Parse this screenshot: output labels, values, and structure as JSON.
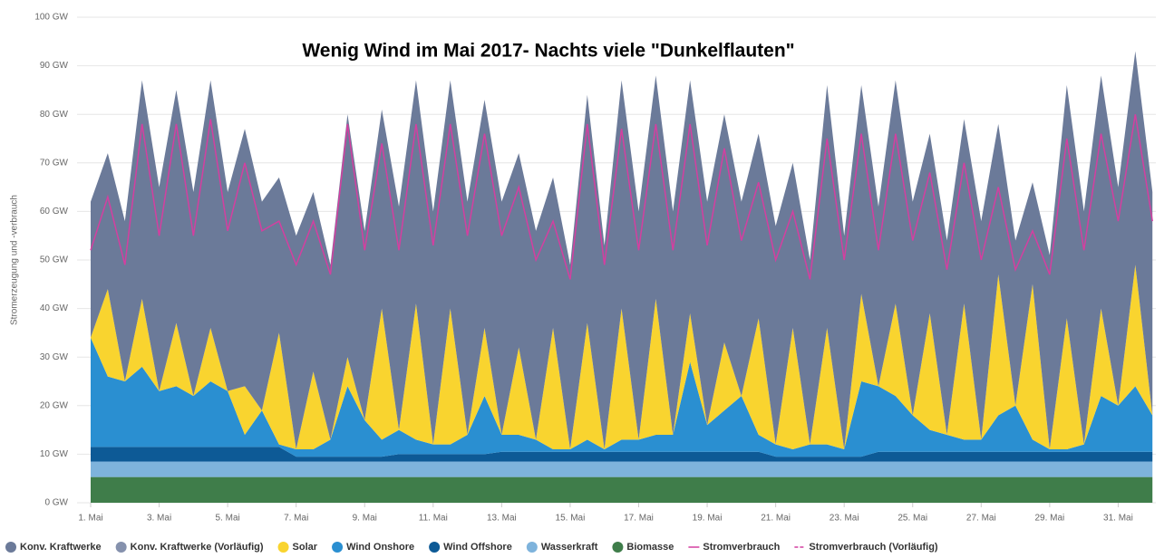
{
  "chart_data": {
    "type": "area",
    "title": "Wenig Wind im Mai 2017- Nachts viele \"Dunkelflauten\"",
    "y_label": "Stromerzeugung und -verbrauch",
    "x": [
      1,
      1.5,
      2,
      2.5,
      3,
      3.5,
      4,
      4.5,
      5,
      5.5,
      6,
      6.5,
      7,
      7.5,
      8,
      8.5,
      9,
      9.5,
      10,
      10.5,
      11,
      11.5,
      12,
      12.5,
      13,
      13.5,
      14,
      14.5,
      15,
      15.5,
      16,
      16.5,
      17,
      17.5,
      18,
      18.5,
      19,
      19.5,
      20,
      20.5,
      21,
      21.5,
      22,
      22.5,
      23,
      23.5,
      24,
      24.5,
      25,
      25.5,
      26,
      26.5,
      27,
      27.5,
      28,
      28.5,
      29,
      29.5,
      30,
      30.5,
      31,
      31.5,
      32
    ],
    "xlim": [
      1,
      32.1
    ],
    "xticks": [
      {
        "value": 1,
        "label": "1. Mai"
      },
      {
        "value": 3,
        "label": "3. Mai"
      },
      {
        "value": 5,
        "label": "5. Mai"
      },
      {
        "value": 7,
        "label": "7. Mai"
      },
      {
        "value": 9,
        "label": "9. Mai"
      },
      {
        "value": 11,
        "label": "11. Mai"
      },
      {
        "value": 13,
        "label": "13. Mai"
      },
      {
        "value": 15,
        "label": "15. Mai"
      },
      {
        "value": 17,
        "label": "17. Mai"
      },
      {
        "value": 19,
        "label": "19. Mai"
      },
      {
        "value": 21,
        "label": "21. Mai"
      },
      {
        "value": 23,
        "label": "23. Mai"
      },
      {
        "value": 25,
        "label": "25. Mai"
      },
      {
        "value": 27,
        "label": "27. Mai"
      },
      {
        "value": 29,
        "label": "29. Mai"
      },
      {
        "value": 31,
        "label": "31. Mai"
      }
    ],
    "ylim": [
      0,
      100
    ],
    "yticks": [
      {
        "value": 0,
        "label": "0 GW"
      },
      {
        "value": 10,
        "label": "10 GW"
      },
      {
        "value": 20,
        "label": "20 GW"
      },
      {
        "value": 30,
        "label": "30 GW"
      },
      {
        "value": 40,
        "label": "40 GW"
      },
      {
        "value": 50,
        "label": "50 GW"
      },
      {
        "value": 60,
        "label": "60 GW"
      },
      {
        "value": 70,
        "label": "70 GW"
      },
      {
        "value": 80,
        "label": "80 GW"
      },
      {
        "value": 90,
        "label": "90 GW"
      },
      {
        "value": 100,
        "label": "100 GW"
      }
    ],
    "grid": true,
    "stacked": true,
    "series": [
      {
        "name": "Konv. Kraftwerke",
        "color": "#6b7a99",
        "kind": "area",
        "values": [
          28,
          28,
          33,
          45,
          42,
          48,
          42,
          51,
          41,
          53,
          43,
          32,
          44,
          37,
          36,
          50,
          39,
          41,
          46,
          46,
          48,
          47,
          48,
          47,
          48,
          40,
          43,
          31,
          38,
          47,
          42,
          47,
          47,
          46,
          46,
          48,
          46,
          47,
          40,
          38,
          45,
          34,
          38,
          50,
          44,
          43,
          37,
          46,
          44,
          37,
          40,
          38,
          45,
          31,
          34,
          21,
          40,
          48,
          48,
          48,
          45,
          44,
          46
        ]
      },
      {
        "name": "Konv. Kraftwerke (Vorläufig)",
        "color": "#8591ad",
        "kind": "area"
      },
      {
        "name": "Solar",
        "color": "#f9d42f",
        "kind": "area",
        "values": [
          0,
          18,
          0,
          14,
          0,
          13,
          0,
          11,
          0,
          10,
          0,
          23,
          0,
          16,
          0,
          6,
          0,
          27,
          0,
          28,
          0,
          28,
          0,
          14,
          0,
          18,
          0,
          25,
          0,
          24,
          0,
          27,
          0,
          28,
          0,
          10,
          0,
          14,
          0,
          24,
          0,
          25,
          0,
          24,
          0,
          18,
          0,
          19,
          0,
          24,
          0,
          28,
          0,
          29,
          0,
          32,
          0,
          27,
          0,
          18,
          0,
          25,
          0
        ]
      },
      {
        "name": "Wind Onshore",
        "color": "#2a8fd1",
        "kind": "area",
        "values": [
          22.5,
          14.5,
          13.5,
          16.5,
          11.5,
          12.5,
          10.5,
          13.5,
          11.5,
          2.5,
          7.5,
          0.5,
          1.5,
          1.5,
          3.5,
          14.5,
          7.5,
          3.5,
          5,
          3,
          2,
          2,
          4,
          12,
          3.5,
          3.5,
          2.5,
          0.5,
          0.5,
          2.5,
          0.5,
          2.5,
          2.5,
          3.5,
          3.5,
          18.5,
          5.5,
          8.5,
          11.5,
          3.5,
          2.5,
          1.5,
          2.5,
          2.5,
          1.5,
          15.5,
          13.5,
          11.5,
          7.5,
          4.5,
          3.5,
          2.5,
          2.5,
          7.5,
          9.5,
          2.5,
          0.5,
          0.5,
          1.5,
          11.5,
          9.5,
          13.5,
          7.5
        ]
      },
      {
        "name": "Wind Offshore",
        "color": "#0d5a96",
        "kind": "area",
        "values": [
          3,
          3,
          3,
          3,
          3,
          3,
          3,
          3,
          3,
          3,
          3,
          3,
          1,
          1,
          1,
          1,
          1,
          1,
          1.5,
          1.5,
          1.5,
          1.5,
          1.5,
          1.5,
          2,
          2,
          2,
          2,
          2,
          2,
          2,
          2,
          2,
          2,
          2,
          2,
          2,
          2,
          2,
          2,
          1,
          1,
          1,
          1,
          1,
          1,
          2,
          2,
          2,
          2,
          2,
          2,
          2,
          2,
          2,
          2,
          2,
          2,
          2,
          2,
          2,
          2,
          2
        ]
      },
      {
        "name": "Wasserkraft",
        "color": "#7eb3dc",
        "kind": "area",
        "values": [
          3.2,
          3.2,
          3.2,
          3.2,
          3.2,
          3.2,
          3.2,
          3.2,
          3.2,
          3.2,
          3.2,
          3.2,
          3.2,
          3.2,
          3.2,
          3.2,
          3.2,
          3.2,
          3.2,
          3.2,
          3.2,
          3.2,
          3.2,
          3.2,
          3.2,
          3.2,
          3.2,
          3.2,
          3.2,
          3.2,
          3.2,
          3.2,
          3.2,
          3.2,
          3.2,
          3.2,
          3.2,
          3.2,
          3.2,
          3.2,
          3.2,
          3.2,
          3.2,
          3.2,
          3.2,
          3.2,
          3.2,
          3.2,
          3.2,
          3.2,
          3.2,
          3.2,
          3.2,
          3.2,
          3.2,
          3.2,
          3.2,
          3.2,
          3.2,
          3.2,
          3.2,
          3.2,
          3.2
        ]
      },
      {
        "name": "Biomasse",
        "color": "#3f7d4a",
        "kind": "area",
        "values": [
          5.3,
          5.3,
          5.3,
          5.3,
          5.3,
          5.3,
          5.3,
          5.3,
          5.3,
          5.3,
          5.3,
          5.3,
          5.3,
          5.3,
          5.3,
          5.3,
          5.3,
          5.3,
          5.3,
          5.3,
          5.3,
          5.3,
          5.3,
          5.3,
          5.3,
          5.3,
          5.3,
          5.3,
          5.3,
          5.3,
          5.3,
          5.3,
          5.3,
          5.3,
          5.3,
          5.3,
          5.3,
          5.3,
          5.3,
          5.3,
          5.3,
          5.3,
          5.3,
          5.3,
          5.3,
          5.3,
          5.3,
          5.3,
          5.3,
          5.3,
          5.3,
          5.3,
          5.3,
          5.3,
          5.3,
          5.3,
          5.3,
          5.3,
          5.3,
          5.3,
          5.3,
          5.3,
          5.3
        ]
      },
      {
        "name": "Stromverbrauch",
        "color": "#d43fa0",
        "kind": "line",
        "values": [
          52,
          63,
          49,
          78,
          55,
          78,
          55,
          79,
          56,
          70,
          56,
          58,
          49,
          58,
          47,
          78,
          52,
          74,
          52,
          78,
          53,
          78,
          55,
          76,
          55,
          65,
          50,
          58,
          46,
          78,
          49,
          77,
          52,
          78,
          52,
          78,
          53,
          73,
          54,
          66,
          50,
          60,
          46,
          75,
          50,
          76,
          52,
          76,
          54,
          68,
          48,
          70,
          50,
          65,
          48,
          56,
          47,
          75,
          52,
          76,
          58,
          80,
          58
        ]
      },
      {
        "name": "Stromverbrauch (Vorläufig)",
        "color": "#d43fa0",
        "kind": "line",
        "dashed": true
      }
    ]
  }
}
